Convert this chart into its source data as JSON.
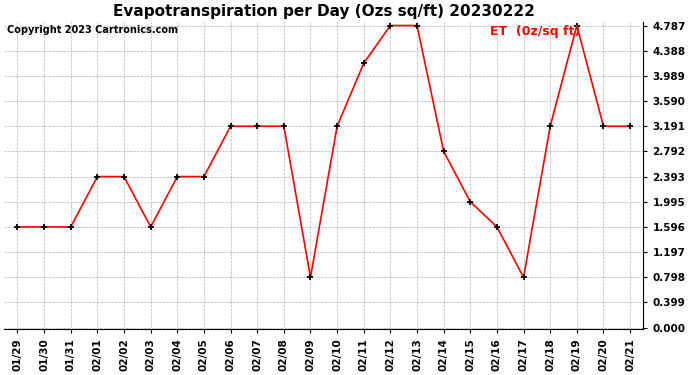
{
  "title": "Evapotranspiration per Day (Ozs sq/ft) 20230222",
  "copyright_text": "Copyright 2023 Cartronics.com",
  "legend_label": "ET  (0z/sq ft)",
  "x_labels": [
    "01/29",
    "01/30",
    "01/31",
    "02/01",
    "02/02",
    "02/03",
    "02/04",
    "02/05",
    "02/06",
    "02/07",
    "02/08",
    "02/09",
    "02/10",
    "02/11",
    "02/12",
    "02/13",
    "02/14",
    "02/15",
    "02/16",
    "02/17",
    "02/18",
    "02/19",
    "02/20",
    "02/21"
  ],
  "y_values": [
    1.596,
    1.596,
    1.596,
    2.393,
    2.393,
    1.596,
    2.393,
    2.393,
    3.191,
    3.191,
    3.191,
    0.798,
    3.191,
    4.189,
    4.787,
    4.787,
    2.792,
    1.995,
    1.596,
    0.798,
    3.191,
    4.787,
    3.191,
    3.191
  ],
  "y_ticks": [
    0.0,
    0.399,
    0.798,
    1.197,
    1.596,
    1.995,
    2.393,
    2.792,
    3.191,
    3.59,
    3.989,
    4.388,
    4.787
  ],
  "line_color": "red",
  "marker_color": "black",
  "background_color": "#ffffff",
  "grid_color": "#aaaaaa",
  "title_fontsize": 11,
  "copyright_fontsize": 7,
  "legend_fontsize": 9,
  "tick_fontsize": 7.5,
  "ylim": [
    0.0,
    4.787
  ],
  "figsize": [
    6.9,
    3.75
  ],
  "dpi": 100
}
